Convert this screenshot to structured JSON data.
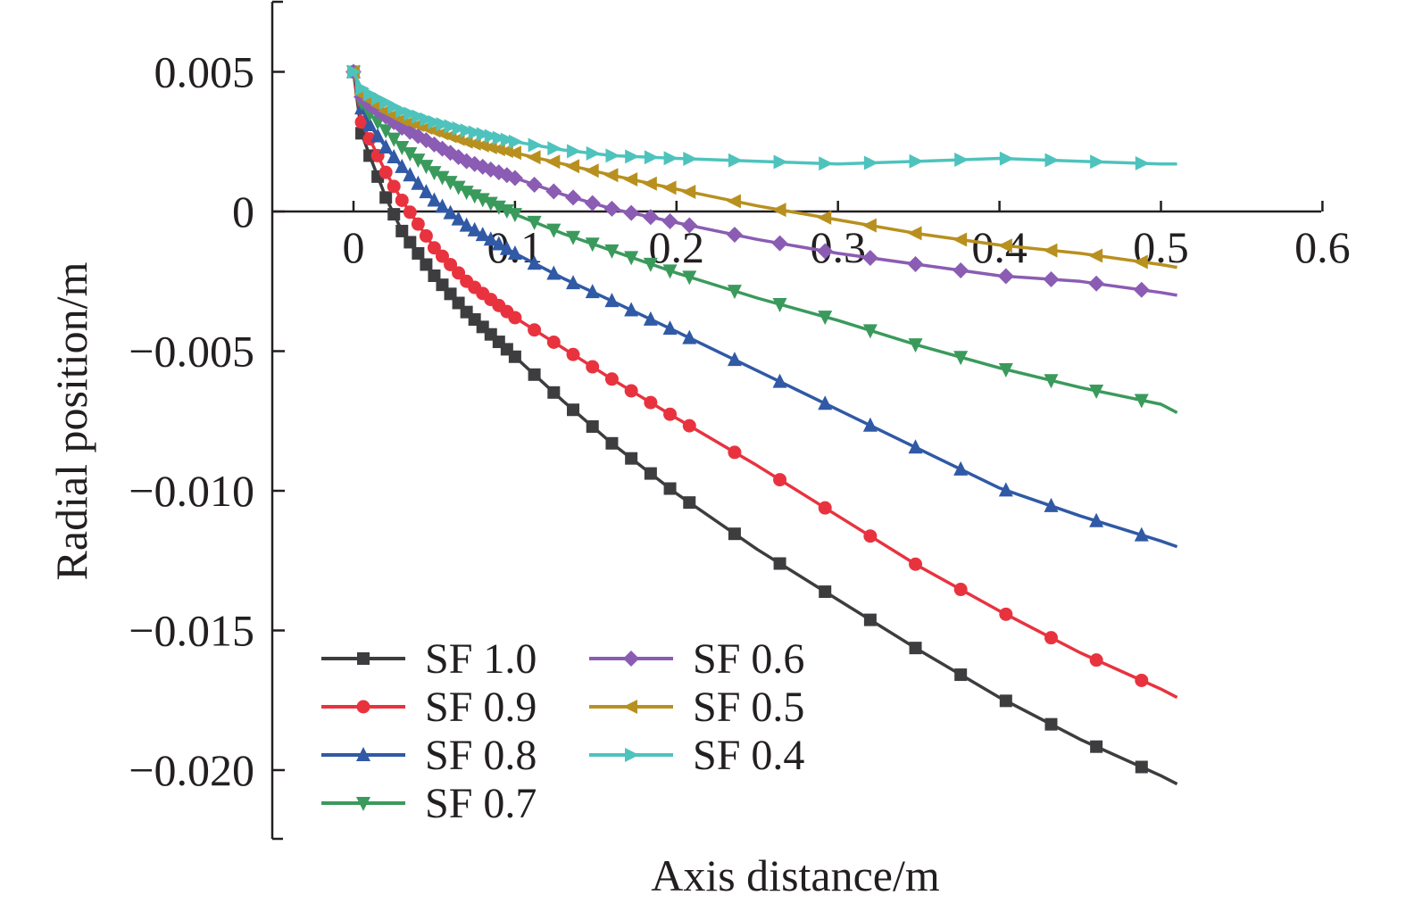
{
  "chart_data": {
    "type": "line",
    "title": "",
    "xlabel": "Axis distance/m",
    "ylabel": "Radial position/m",
    "xlim": [
      -0.05,
      0.6
    ],
    "ylim": [
      -0.0225,
      0.0075
    ],
    "x_ticks": [
      0,
      0.1,
      0.2,
      0.3,
      0.4,
      0.5,
      0.6
    ],
    "x_tick_labels": [
      "0",
      "0.1",
      "0.2",
      "0.3",
      "0.4",
      "0.5",
      "0.6"
    ],
    "y_ticks": [
      0.005,
      0,
      -0.005,
      -0.01,
      -0.015,
      -0.02
    ],
    "y_tick_labels": [
      "0.005",
      "0",
      "−0.005",
      "−0.010",
      "−0.015",
      "−0.020"
    ],
    "grid": false,
    "legend_position": "bottom-left",
    "series": [
      {
        "name": "SF 1.0",
        "color": "#3d3d3f",
        "marker": "square",
        "x": [
          0,
          0.005,
          0.01,
          0.02,
          0.03,
          0.05,
          0.07,
          0.1,
          0.13,
          0.16,
          0.2,
          0.25,
          0.3,
          0.35,
          0.4,
          0.45,
          0.5,
          0.51
        ],
        "y": [
          0.005,
          0.0028,
          0.002,
          0.0005,
          -0.0007,
          -0.0023,
          -0.0036,
          -0.0052,
          -0.0068,
          -0.0083,
          -0.0101,
          -0.0121,
          -0.0139,
          -0.0157,
          -0.0174,
          -0.0189,
          -0.0202,
          -0.0205
        ]
      },
      {
        "name": "SF 0.9",
        "color": "#e8333f",
        "marker": "circle",
        "x": [
          0,
          0.005,
          0.01,
          0.02,
          0.03,
          0.05,
          0.07,
          0.1,
          0.13,
          0.16,
          0.2,
          0.25,
          0.3,
          0.35,
          0.4,
          0.45,
          0.5,
          0.51
        ],
        "y": [
          0.005,
          0.0032,
          0.0026,
          0.0014,
          0.0004,
          -0.0013,
          -0.0025,
          -0.0038,
          -0.0049,
          -0.006,
          -0.0074,
          -0.0091,
          -0.0109,
          -0.0127,
          -0.0143,
          -0.0158,
          -0.0171,
          -0.0174
        ]
      },
      {
        "name": "SF 0.8",
        "color": "#3059a6",
        "marker": "triangle-up",
        "x": [
          0,
          0.005,
          0.01,
          0.02,
          0.03,
          0.05,
          0.07,
          0.1,
          0.13,
          0.16,
          0.2,
          0.25,
          0.3,
          0.35,
          0.4,
          0.45,
          0.5,
          0.51
        ],
        "y": [
          0.005,
          0.0037,
          0.0031,
          0.0023,
          0.0016,
          0.0004,
          -0.0005,
          -0.0015,
          -0.0024,
          -0.0032,
          -0.0043,
          -0.0057,
          -0.0071,
          -0.0085,
          -0.0099,
          -0.0109,
          -0.0118,
          -0.012
        ]
      },
      {
        "name": "SF 0.7",
        "color": "#3a9a5c",
        "marker": "triangle-down",
        "x": [
          0,
          0.005,
          0.01,
          0.02,
          0.03,
          0.05,
          0.07,
          0.1,
          0.13,
          0.16,
          0.2,
          0.25,
          0.3,
          0.35,
          0.4,
          0.45,
          0.5,
          0.51
        ],
        "y": [
          0.005,
          0.0039,
          0.0035,
          0.0029,
          0.0023,
          0.0014,
          0.0007,
          -0.0001,
          -0.0008,
          -0.0014,
          -0.0022,
          -0.0031,
          -0.0039,
          -0.0048,
          -0.0056,
          -0.0063,
          -0.0069,
          -0.0072
        ]
      },
      {
        "name": "SF 0.6",
        "color": "#8b5cb3",
        "marker": "diamond",
        "x": [
          0,
          0.005,
          0.01,
          0.02,
          0.03,
          0.05,
          0.07,
          0.1,
          0.13,
          0.16,
          0.2,
          0.25,
          0.3,
          0.35,
          0.4,
          0.45,
          0.5,
          0.51
        ],
        "y": [
          0.005,
          0.0041,
          0.0038,
          0.0034,
          0.003,
          0.0024,
          0.0018,
          0.0012,
          0.0006,
          0.0001,
          -0.0004,
          -0.001,
          -0.0015,
          -0.0019,
          -0.0023,
          -0.0025,
          -0.0029,
          -0.003
        ]
      },
      {
        "name": "SF 0.5",
        "color": "#b8901f",
        "marker": "triangle-left",
        "x": [
          0,
          0.005,
          0.01,
          0.02,
          0.03,
          0.05,
          0.07,
          0.1,
          0.13,
          0.16,
          0.2,
          0.25,
          0.3,
          0.35,
          0.4,
          0.45,
          0.5,
          0.51
        ],
        "y": [
          0.005,
          0.0042,
          0.004,
          0.0036,
          0.0033,
          0.0029,
          0.0025,
          0.0021,
          0.0017,
          0.0013,
          0.0008,
          0.0002,
          -0.0003,
          -0.0008,
          -0.0012,
          -0.0015,
          -0.0019,
          -0.002
        ]
      },
      {
        "name": "SF 0.4",
        "color": "#4ec3bd",
        "marker": "triangle-right",
        "x": [
          0,
          0.005,
          0.01,
          0.02,
          0.03,
          0.05,
          0.07,
          0.1,
          0.13,
          0.16,
          0.2,
          0.25,
          0.3,
          0.35,
          0.4,
          0.45,
          0.5,
          0.51
        ],
        "y": [
          0.005,
          0.0044,
          0.0042,
          0.0039,
          0.0036,
          0.0032,
          0.0029,
          0.0025,
          0.0022,
          0.002,
          0.0019,
          0.0018,
          0.0017,
          0.0018,
          0.0019,
          0.0018,
          0.0017,
          0.0017
        ]
      }
    ]
  }
}
